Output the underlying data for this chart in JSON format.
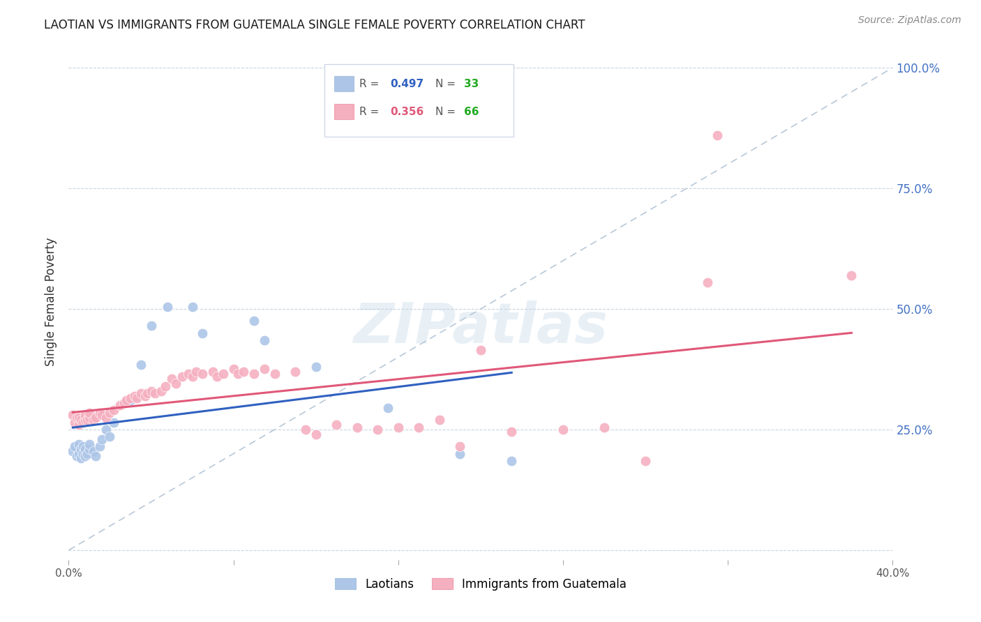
{
  "title": "LAOTIAN VS IMMIGRANTS FROM GUATEMALA SINGLE FEMALE POVERTY CORRELATION CHART",
  "source": "Source: ZipAtlas.com",
  "ylabel": "Single Female Poverty",
  "xlim": [
    0.0,
    0.4
  ],
  "ylim": [
    -0.02,
    1.05
  ],
  "xtick_positions": [
    0.0,
    0.08,
    0.16,
    0.24,
    0.32,
    0.4
  ],
  "xtick_labels": [
    "0.0%",
    "",
    "",
    "",
    "",
    "40.0%"
  ],
  "ytick_positions": [
    0.0,
    0.25,
    0.5,
    0.75,
    1.0
  ],
  "ytick_labels_right": [
    "",
    "25.0%",
    "50.0%",
    "75.0%",
    "100.0%"
  ],
  "laotian_color": "#adc6e8",
  "guatemala_color": "#f5b0c0",
  "laotian_line_color": "#3060c0",
  "guatemala_line_color": "#e05878",
  "diagonal_color": "#b8c8d8",
  "background_color": "#ffffff",
  "grid_color": "#c8d4e0",
  "title_color": "#1a1a1a",
  "right_label_color": "#4472c4",
  "legend_N_color": "#22aa22",
  "laotian_points": [
    [
      0.002,
      0.205
    ],
    [
      0.003,
      0.215
    ],
    [
      0.004,
      0.195
    ],
    [
      0.005,
      0.2
    ],
    [
      0.005,
      0.22
    ],
    [
      0.006,
      0.19
    ],
    [
      0.006,
      0.21
    ],
    [
      0.007,
      0.2
    ],
    [
      0.007,
      0.215
    ],
    [
      0.008,
      0.195
    ],
    [
      0.008,
      0.21
    ],
    [
      0.009,
      0.2
    ],
    [
      0.01,
      0.21
    ],
    [
      0.01,
      0.22
    ],
    [
      0.012,
      0.205
    ],
    [
      0.013,
      0.195
    ],
    [
      0.015,
      0.215
    ],
    [
      0.016,
      0.23
    ],
    [
      0.018,
      0.25
    ],
    [
      0.02,
      0.235
    ],
    [
      0.022,
      0.265
    ],
    [
      0.03,
      0.31
    ],
    [
      0.035,
      0.385
    ],
    [
      0.04,
      0.465
    ],
    [
      0.048,
      0.505
    ],
    [
      0.06,
      0.505
    ],
    [
      0.065,
      0.45
    ],
    [
      0.09,
      0.475
    ],
    [
      0.095,
      0.435
    ],
    [
      0.12,
      0.38
    ],
    [
      0.155,
      0.295
    ],
    [
      0.19,
      0.2
    ],
    [
      0.215,
      0.185
    ]
  ],
  "guatemala_points": [
    [
      0.002,
      0.28
    ],
    [
      0.003,
      0.265
    ],
    [
      0.004,
      0.275
    ],
    [
      0.005,
      0.26
    ],
    [
      0.005,
      0.275
    ],
    [
      0.006,
      0.27
    ],
    [
      0.007,
      0.265
    ],
    [
      0.008,
      0.27
    ],
    [
      0.008,
      0.28
    ],
    [
      0.009,
      0.27
    ],
    [
      0.01,
      0.275
    ],
    [
      0.01,
      0.285
    ],
    [
      0.012,
      0.27
    ],
    [
      0.013,
      0.275
    ],
    [
      0.015,
      0.285
    ],
    [
      0.016,
      0.28
    ],
    [
      0.018,
      0.275
    ],
    [
      0.02,
      0.285
    ],
    [
      0.022,
      0.29
    ],
    [
      0.025,
      0.3
    ],
    [
      0.027,
      0.305
    ],
    [
      0.028,
      0.31
    ],
    [
      0.03,
      0.315
    ],
    [
      0.032,
      0.32
    ],
    [
      0.033,
      0.315
    ],
    [
      0.035,
      0.325
    ],
    [
      0.037,
      0.32
    ],
    [
      0.038,
      0.325
    ],
    [
      0.04,
      0.33
    ],
    [
      0.042,
      0.325
    ],
    [
      0.045,
      0.33
    ],
    [
      0.047,
      0.34
    ],
    [
      0.05,
      0.355
    ],
    [
      0.052,
      0.345
    ],
    [
      0.055,
      0.36
    ],
    [
      0.058,
      0.365
    ],
    [
      0.06,
      0.36
    ],
    [
      0.062,
      0.37
    ],
    [
      0.065,
      0.365
    ],
    [
      0.07,
      0.37
    ],
    [
      0.072,
      0.36
    ],
    [
      0.075,
      0.365
    ],
    [
      0.08,
      0.375
    ],
    [
      0.082,
      0.365
    ],
    [
      0.085,
      0.37
    ],
    [
      0.09,
      0.365
    ],
    [
      0.095,
      0.375
    ],
    [
      0.1,
      0.365
    ],
    [
      0.11,
      0.37
    ],
    [
      0.115,
      0.25
    ],
    [
      0.12,
      0.24
    ],
    [
      0.13,
      0.26
    ],
    [
      0.14,
      0.255
    ],
    [
      0.15,
      0.25
    ],
    [
      0.16,
      0.255
    ],
    [
      0.17,
      0.255
    ],
    [
      0.18,
      0.27
    ],
    [
      0.19,
      0.215
    ],
    [
      0.2,
      0.415
    ],
    [
      0.215,
      0.245
    ],
    [
      0.24,
      0.25
    ],
    [
      0.26,
      0.255
    ],
    [
      0.28,
      0.185
    ],
    [
      0.31,
      0.555
    ],
    [
      0.315,
      0.86
    ],
    [
      0.38,
      0.57
    ]
  ],
  "figsize": [
    14.06,
    8.92
  ],
  "dpi": 100
}
